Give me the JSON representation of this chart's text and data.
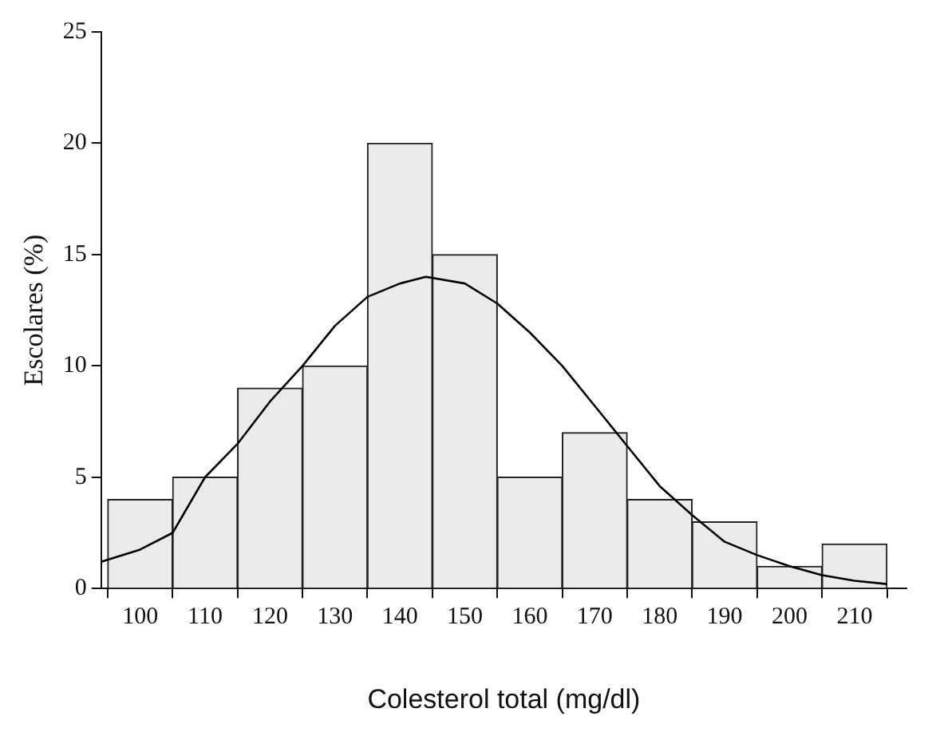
{
  "chart_data": {
    "type": "histogram",
    "xlabel": "Colesterol total (mg/dl)",
    "ylabel": "Escolares (%)",
    "bins": [
      95,
      105,
      115,
      125,
      135,
      145,
      155,
      165,
      175,
      185,
      195,
      205,
      215
    ],
    "values": [
      4,
      5,
      9,
      10,
      20,
      15,
      5,
      7,
      4,
      3,
      1,
      2
    ],
    "color": "#ebebeb",
    "series": [
      {
        "type": "line",
        "color": "#000000",
        "x": [
          94,
          100,
          105,
          110,
          115,
          120,
          125,
          130,
          135,
          140,
          144,
          150,
          155,
          160,
          165,
          170,
          175,
          180,
          185,
          190,
          195,
          200,
          205,
          210,
          215
        ],
        "values": [
          1.2,
          1.75,
          2.5,
          5.0,
          6.5,
          8.4,
          10.0,
          11.8,
          13.1,
          13.7,
          14.0,
          13.7,
          12.8,
          11.5,
          10.0,
          8.2,
          6.4,
          4.6,
          3.3,
          2.1,
          1.5,
          1.0,
          0.6,
          0.35,
          0.2
        ]
      }
    ],
    "xlim": [
      94,
      218
    ],
    "xticks": [
      100,
      110,
      120,
      130,
      140,
      150,
      160,
      170,
      180,
      190,
      200,
      210
    ],
    "ylim": [
      0,
      25
    ],
    "yticks": [
      0,
      5,
      10,
      15,
      20,
      25
    ],
    "grid": false,
    "legend": false,
    "marker": "none",
    "line_style": "solid"
  }
}
